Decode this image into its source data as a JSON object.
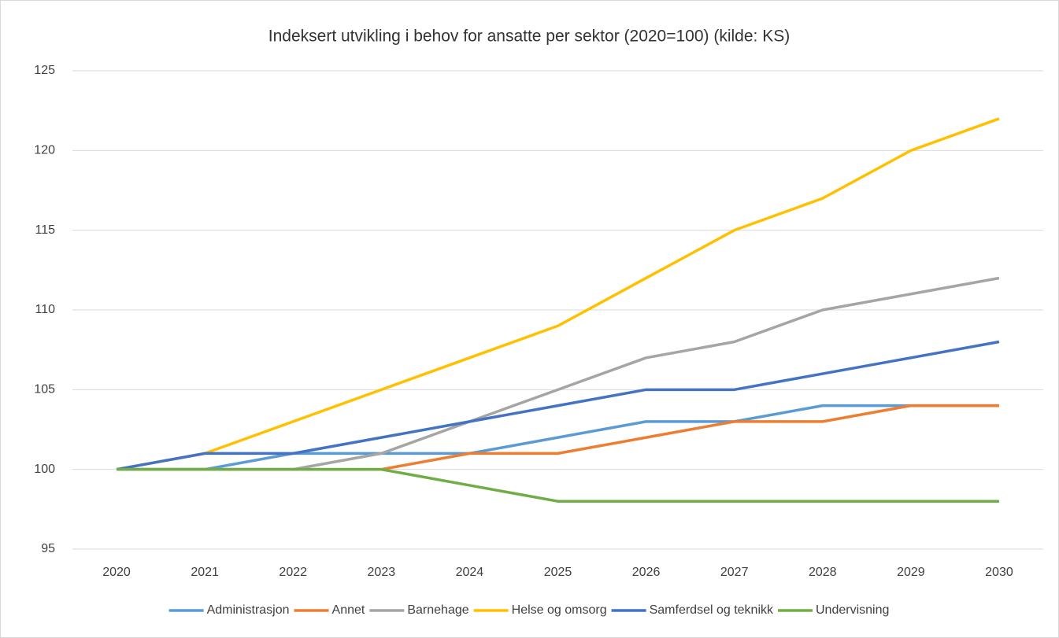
{
  "chart_data": {
    "type": "line",
    "title": "Indeksert utvikling i behov for ansatte per sektor (2020=100) (kilde: KS)",
    "categories": [
      "2020",
      "2021",
      "2022",
      "2023",
      "2024",
      "2025",
      "2026",
      "2027",
      "2028",
      "2029",
      "2030"
    ],
    "series": [
      {
        "name": "Administrasjon",
        "color": "#5b9bd5",
        "values": [
          100,
          100,
          101,
          101,
          101,
          102,
          103,
          103,
          104,
          104,
          104
        ]
      },
      {
        "name": "Annet",
        "color": "#ed7d31",
        "values": [
          100,
          100,
          100,
          100,
          101,
          101,
          102,
          103,
          103,
          104,
          104
        ]
      },
      {
        "name": "Barnehage",
        "color": "#a5a5a5",
        "values": [
          100,
          100,
          100,
          101,
          103,
          105,
          107,
          108,
          110,
          111,
          112
        ]
      },
      {
        "name": "Helse og omsorg",
        "color": "#ffc000",
        "values": [
          100,
          101,
          103,
          105,
          107,
          109,
          112,
          115,
          117,
          120,
          122
        ]
      },
      {
        "name": "Samferdsel og teknikk",
        "color": "#4472c4",
        "values": [
          100,
          101,
          101,
          102,
          103,
          104,
          105,
          105,
          106,
          107,
          108
        ]
      },
      {
        "name": "Undervisning",
        "color": "#70ad47",
        "values": [
          100,
          100,
          100,
          100,
          99,
          98,
          98,
          98,
          98,
          98,
          98
        ]
      }
    ],
    "ylim": [
      95,
      125
    ],
    "yticks": [
      95,
      100,
      105,
      110,
      115,
      120,
      125
    ],
    "grid": true,
    "legend": "bottom"
  }
}
